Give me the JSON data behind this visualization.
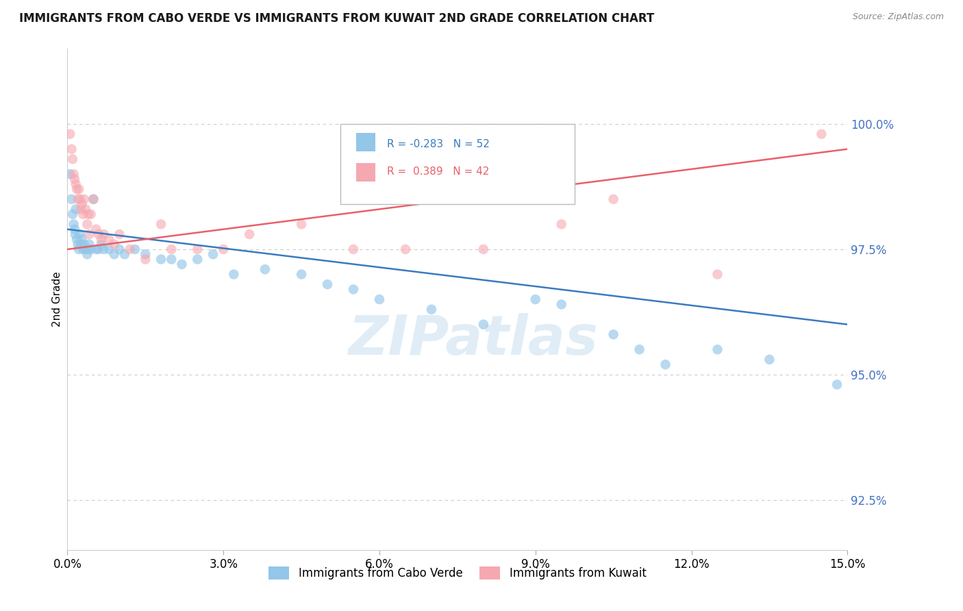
{
  "title": "IMMIGRANTS FROM CABO VERDE VS IMMIGRANTS FROM KUWAIT 2ND GRADE CORRELATION CHART",
  "source_text": "Source: ZipAtlas.com",
  "ylabel": "2nd Grade",
  "xlim": [
    0.0,
    15.0
  ],
  "ylim": [
    91.5,
    101.5
  ],
  "yticks": [
    92.5,
    95.0,
    97.5,
    100.0
  ],
  "ytick_labels": [
    "92.5%",
    "95.0%",
    "97.5%",
    "100.0%"
  ],
  "xticks": [
    0.0,
    3.0,
    6.0,
    9.0,
    12.0,
    15.0
  ],
  "xtick_labels": [
    "0.0%",
    "3.0%",
    "6.0%",
    "9.0%",
    "12.0%",
    "15.0%"
  ],
  "blue_color": "#93c6e8",
  "pink_color": "#f5a8b0",
  "blue_line_color": "#3a7bbf",
  "pink_line_color": "#e8606a",
  "axis_tick_color": "#4472c4",
  "R_blue": -0.283,
  "N_blue": 52,
  "R_pink": 0.389,
  "N_pink": 42,
  "legend_label_blue": "Immigrants from Cabo Verde",
  "legend_label_pink": "Immigrants from Kuwait",
  "watermark": "ZIPatlas",
  "blue_x": [
    0.05,
    0.08,
    0.1,
    0.12,
    0.14,
    0.15,
    0.16,
    0.18,
    0.2,
    0.22,
    0.24,
    0.26,
    0.28,
    0.3,
    0.32,
    0.35,
    0.38,
    0.4,
    0.42,
    0.45,
    0.5,
    0.55,
    0.6,
    0.65,
    0.7,
    0.8,
    0.9,
    1.0,
    1.1,
    1.3,
    1.5,
    1.8,
    2.0,
    2.2,
    2.5,
    2.8,
    3.2,
    3.8,
    4.5,
    5.0,
    5.5,
    6.0,
    7.0,
    8.0,
    9.0,
    9.5,
    10.5,
    11.0,
    11.5,
    12.5,
    13.5,
    14.8
  ],
  "blue_y": [
    99.0,
    98.5,
    98.2,
    98.0,
    97.9,
    97.8,
    98.3,
    97.7,
    97.6,
    97.5,
    97.8,
    97.6,
    97.7,
    97.5,
    97.6,
    97.5,
    97.4,
    97.5,
    97.6,
    97.5,
    98.5,
    97.5,
    97.5,
    97.6,
    97.5,
    97.5,
    97.4,
    97.5,
    97.4,
    97.5,
    97.4,
    97.3,
    97.3,
    97.2,
    97.3,
    97.4,
    97.0,
    97.1,
    97.0,
    96.8,
    96.7,
    96.5,
    96.3,
    96.0,
    96.5,
    96.4,
    95.8,
    95.5,
    95.2,
    95.5,
    95.3,
    94.8
  ],
  "pink_x": [
    0.05,
    0.08,
    0.1,
    0.12,
    0.14,
    0.16,
    0.18,
    0.2,
    0.22,
    0.24,
    0.26,
    0.28,
    0.3,
    0.32,
    0.35,
    0.38,
    0.4,
    0.42,
    0.45,
    0.5,
    0.55,
    0.6,
    0.65,
    0.7,
    0.8,
    0.9,
    1.0,
    1.2,
    1.5,
    1.8,
    2.0,
    2.5,
    3.0,
    3.5,
    4.5,
    5.5,
    6.5,
    8.0,
    9.5,
    10.5,
    12.5,
    14.5
  ],
  "pink_y": [
    99.8,
    99.5,
    99.3,
    99.0,
    98.9,
    98.8,
    98.7,
    98.5,
    98.7,
    98.5,
    98.3,
    98.4,
    98.2,
    98.5,
    98.3,
    98.0,
    98.2,
    97.8,
    98.2,
    98.5,
    97.9,
    97.8,
    97.7,
    97.8,
    97.7,
    97.6,
    97.8,
    97.5,
    97.3,
    98.0,
    97.5,
    97.5,
    97.5,
    97.8,
    98.0,
    97.5,
    97.5,
    97.5,
    98.0,
    98.5,
    97.0,
    99.8
  ],
  "blue_trendline_x": [
    0.0,
    15.0
  ],
  "blue_trendline_y": [
    97.9,
    96.0
  ],
  "pink_trendline_x": [
    0.0,
    15.0
  ],
  "pink_trendline_y": [
    97.5,
    99.5
  ]
}
